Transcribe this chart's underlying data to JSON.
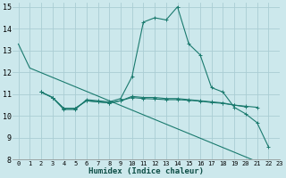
{
  "xlabel": "Humidex (Indice chaleur)",
  "xlim": [
    -0.5,
    23
  ],
  "ylim": [
    8,
    15.2
  ],
  "yticks": [
    8,
    9,
    10,
    11,
    12,
    13,
    14,
    15
  ],
  "xticks": [
    0,
    1,
    2,
    3,
    4,
    5,
    6,
    7,
    8,
    9,
    10,
    11,
    12,
    13,
    14,
    15,
    16,
    17,
    18,
    19,
    20,
    21,
    22,
    23
  ],
  "bg_color": "#cce8ec",
  "grid_color": "#aacdd4",
  "line_color": "#1a7a6e",
  "line1": {
    "x": [
      0,
      1,
      22
    ],
    "y": [
      13.3,
      12.2,
      7.7
    ]
  },
  "line2": {
    "x": [
      2,
      3,
      4,
      5,
      6,
      7,
      8,
      9,
      10,
      11,
      12,
      13,
      14,
      15,
      16,
      17,
      18,
      19,
      20,
      21,
      22
    ],
    "y": [
      11.1,
      10.85,
      10.3,
      10.3,
      10.75,
      10.7,
      10.65,
      10.8,
      11.8,
      14.3,
      14.5,
      14.4,
      15.0,
      13.3,
      12.8,
      11.3,
      11.1,
      10.4,
      10.1,
      9.7,
      8.6
    ]
  },
  "line3": {
    "x": [
      2,
      3,
      4,
      5,
      6,
      7,
      8,
      9,
      10,
      11,
      12,
      13,
      14,
      15,
      16,
      17,
      18,
      19,
      20,
      21
    ],
    "y": [
      11.1,
      10.85,
      10.35,
      10.35,
      10.7,
      10.65,
      10.6,
      10.7,
      10.9,
      10.85,
      10.85,
      10.8,
      10.8,
      10.75,
      10.7,
      10.65,
      10.6,
      10.5,
      10.45,
      10.4
    ]
  },
  "line4": {
    "x": [
      2,
      3,
      4,
      5,
      6,
      7,
      8,
      9,
      10,
      11,
      12,
      13,
      14,
      15,
      16,
      17,
      18,
      19,
      20
    ],
    "y": [
      11.1,
      10.85,
      10.35,
      10.35,
      10.7,
      10.65,
      10.6,
      10.7,
      10.85,
      10.8,
      10.78,
      10.75,
      10.75,
      10.72,
      10.68,
      10.62,
      10.58,
      10.5,
      10.42
    ]
  }
}
